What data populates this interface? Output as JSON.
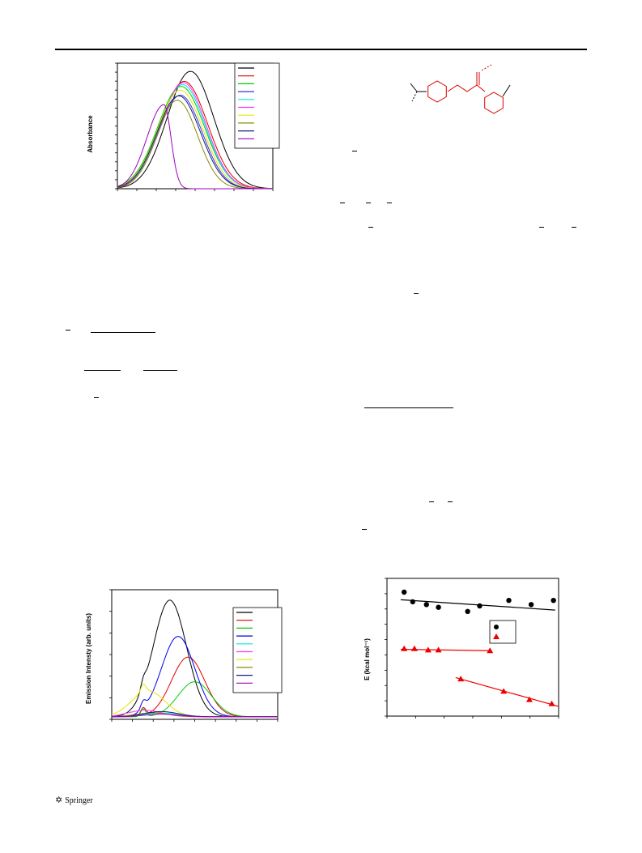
{
  "chart_data": [
    {
      "type": "line",
      "title": "",
      "xlabel": "",
      "ylabel": "Absorbance",
      "legend_placement": "top-right",
      "series": [
        {
          "color": "#000000",
          "peak": 0.935,
          "peak_at": 0.47,
          "width": 0.15
        },
        {
          "color": "#dd0000",
          "peak": 0.855,
          "peak_at": 0.43,
          "width": 0.15
        },
        {
          "color": "#00cc00",
          "peak": 0.815,
          "peak_at": 0.41,
          "width": 0.15
        },
        {
          "color": "#3333ee",
          "peak": 0.745,
          "peak_at": 0.405,
          "width": 0.14
        },
        {
          "color": "#00e5e5",
          "peak": 0.83,
          "peak_at": 0.42,
          "width": 0.145
        },
        {
          "color": "#ff33ff",
          "peak": 0.845,
          "peak_at": 0.425,
          "width": 0.145
        },
        {
          "color": "#e6e600",
          "peak": 0.785,
          "peak_at": 0.405,
          "width": 0.145
        },
        {
          "color": "#8b8b00",
          "peak": 0.705,
          "peak_at": 0.385,
          "width": 0.13
        },
        {
          "color": "#1a1a7a",
          "peak": 0.74,
          "peak_at": 0.395,
          "width": 0.14
        },
        {
          "color": "#a000c0",
          "peak": 0.67,
          "peak_at": 0.3,
          "width": 0.11
        }
      ]
    },
    {
      "type": "line",
      "title": "",
      "xlabel": "",
      "ylabel": "Emission Intensty (arb. units)",
      "legend_placement": "top-right",
      "series": [
        {
          "color": "#000000",
          "peak": 0.9,
          "peak_at": 0.35
        },
        {
          "color": "#dd0000",
          "peak": 0.46,
          "peak_at": 0.46
        },
        {
          "color": "#00cc00",
          "peak": 0.27,
          "peak_at": 0.5
        },
        {
          "color": "#0000ee",
          "peak": 0.62,
          "peak_at": 0.4
        },
        {
          "color": "#00e5e5",
          "peak": 0.03,
          "peak_at": 0.3
        },
        {
          "color": "#ff33ff",
          "peak": 0.05,
          "peak_at": 0.2
        },
        {
          "color": "#e6e600",
          "peak": 0.2,
          "peak_at": 0.22
        },
        {
          "color": "#8b8b00",
          "peak": 0.03,
          "peak_at": 0.25
        },
        {
          "color": "#1a1a7a",
          "peak": 0.04,
          "peak_at": 0.3
        },
        {
          "color": "#a000c0",
          "peak": 0.02,
          "peak_at": 0.3
        }
      ]
    },
    {
      "type": "scatter",
      "title": "",
      "xlabel": "",
      "ylabel": "E (kcal mol⁻¹)",
      "legend_placement": "center-right",
      "series": [
        {
          "marker": "circle",
          "color": "#000000",
          "x": [
            0.1,
            0.15,
            0.23,
            0.3,
            0.47,
            0.54,
            0.71,
            0.84,
            0.97
          ],
          "y": [
            0.9,
            0.83,
            0.81,
            0.79,
            0.76,
            0.8,
            0.84,
            0.81,
            0.84
          ],
          "fit": [
            [
              0.08,
              0.845
            ],
            [
              0.98,
              0.77
            ]
          ]
        },
        {
          "marker": "triangle",
          "color": "#ee0000",
          "x": [
            0.1,
            0.16,
            0.24,
            0.3,
            0.6
          ],
          "y": [
            0.49,
            0.49,
            0.48,
            0.48,
            0.475
          ],
          "fit": [
            [
              0.08,
              0.485
            ],
            [
              0.6,
              0.475
            ]
          ]
        },
        {
          "marker": "triangle",
          "color": "#ee0000",
          "x": [
            0.43,
            0.68,
            0.83,
            0.96
          ],
          "y": [
            0.27,
            0.18,
            0.12,
            0.09
          ],
          "fit": [
            [
              0.4,
              0.28
            ],
            [
              1.0,
              0.07
            ]
          ]
        }
      ]
    }
  ],
  "structure": {
    "color_black": "#000000",
    "color_red": "#dd0000"
  },
  "footer": {
    "publisher": "Springer",
    "icon": "springer-logo-icon"
  }
}
